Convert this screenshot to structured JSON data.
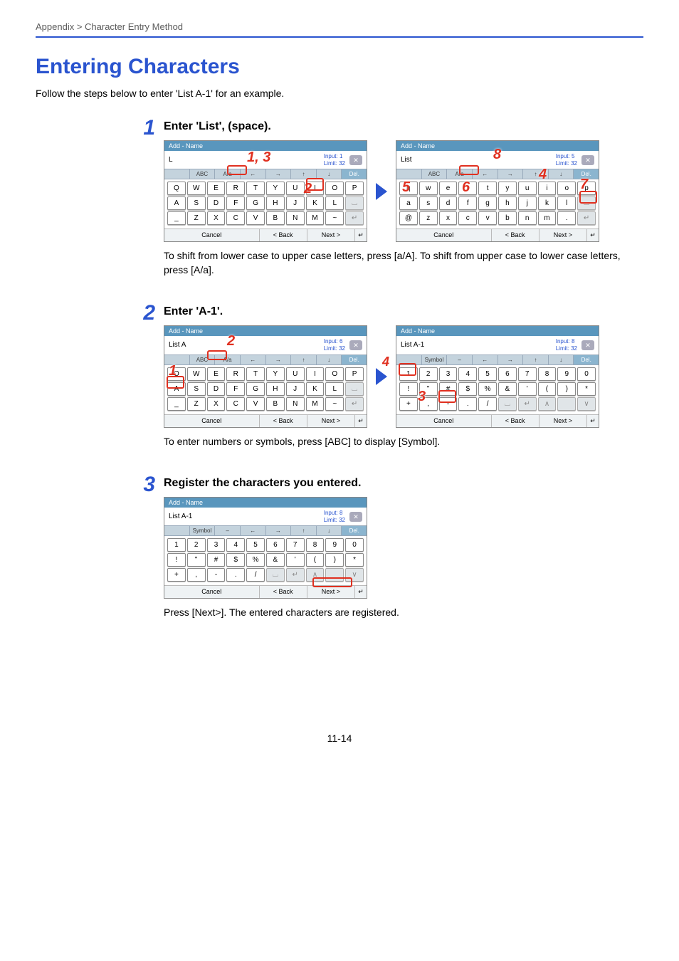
{
  "breadcrumb": "Appendix > Character Entry Method",
  "title": "Entering Characters",
  "intro": "Follow the steps below to enter 'List A-1' for an example.",
  "pageNumber": "11-14",
  "steps": {
    "s1": {
      "num": "1",
      "title": "Enter 'List', (space).",
      "note": "To shift from lower case to upper case letters, press [a/A]. To shift from upper case to lower case letters, press [A/a]."
    },
    "s2": {
      "num": "2",
      "title": "Enter 'A-1'.",
      "note": "To enter numbers or symbols, press [ABC] to display [Symbol]."
    },
    "s3": {
      "num": "3",
      "title": "Register the characters you entered.",
      "note": "Press [Next>]. The entered characters are registered."
    }
  },
  "panel": {
    "title": "Add - Name",
    "inputWord": "Input:",
    "limitWord": "Limit:",
    "limitVal": "32",
    "close": "✕",
    "toolbar": {
      "abc": "ABC",
      "aA": "A/a",
      "symbol": "Symbol",
      "del": "Del."
    },
    "foot": {
      "cancel": "Cancel",
      "back": "< Back",
      "next": "Next >",
      "enter": "↵"
    },
    "rowsUpper": [
      [
        "Q",
        "W",
        "E",
        "R",
        "T",
        "Y",
        "U",
        "I",
        "O",
        "P"
      ],
      [
        "A",
        "S",
        "D",
        "F",
        "G",
        "H",
        "J",
        "K",
        "L",
        "␣"
      ],
      [
        "_",
        "Z",
        "X",
        "C",
        "V",
        "B",
        "N",
        "M",
        "~",
        "↵"
      ]
    ],
    "rowsLower": [
      [
        "q",
        "w",
        "e",
        "r",
        "t",
        "y",
        "u",
        "i",
        "o",
        "p"
      ],
      [
        "a",
        "s",
        "d",
        "f",
        "g",
        "h",
        "j",
        "k",
        "l",
        "␣"
      ],
      [
        "@",
        "z",
        "x",
        "c",
        "v",
        "b",
        "n",
        "m",
        ".",
        "↵"
      ]
    ],
    "rowsSymbol": [
      [
        "1",
        "2",
        "3",
        "4",
        "5",
        "6",
        "7",
        "8",
        "9",
        "0"
      ],
      [
        "!",
        "\"",
        "#",
        "$",
        "%",
        "&",
        "'",
        "(",
        ")",
        "*"
      ],
      [
        "+",
        ",",
        "-",
        ".",
        "/",
        "␣",
        "↵",
        "∧",
        "",
        "∨"
      ]
    ]
  },
  "inputs": {
    "p1a": "L",
    "p1aCount": "1",
    "p1b": "List",
    "p1bCount": "5",
    "p2a": "List A",
    "p2aCount": "6",
    "p2b": "List A-1",
    "p2bCount": "8",
    "p3": "List A-1",
    "p3Count": "8"
  },
  "callouts": {
    "c13": "1, 3",
    "c8": "8",
    "c2": "2",
    "c5": "5",
    "c6": "6",
    "c7": "7",
    "c4": "4",
    "c3": "3",
    "c1": "1"
  },
  "colors": {
    "accent": "#2a54cf",
    "red": "#e03020",
    "panelTitle": "#5996bd"
  }
}
